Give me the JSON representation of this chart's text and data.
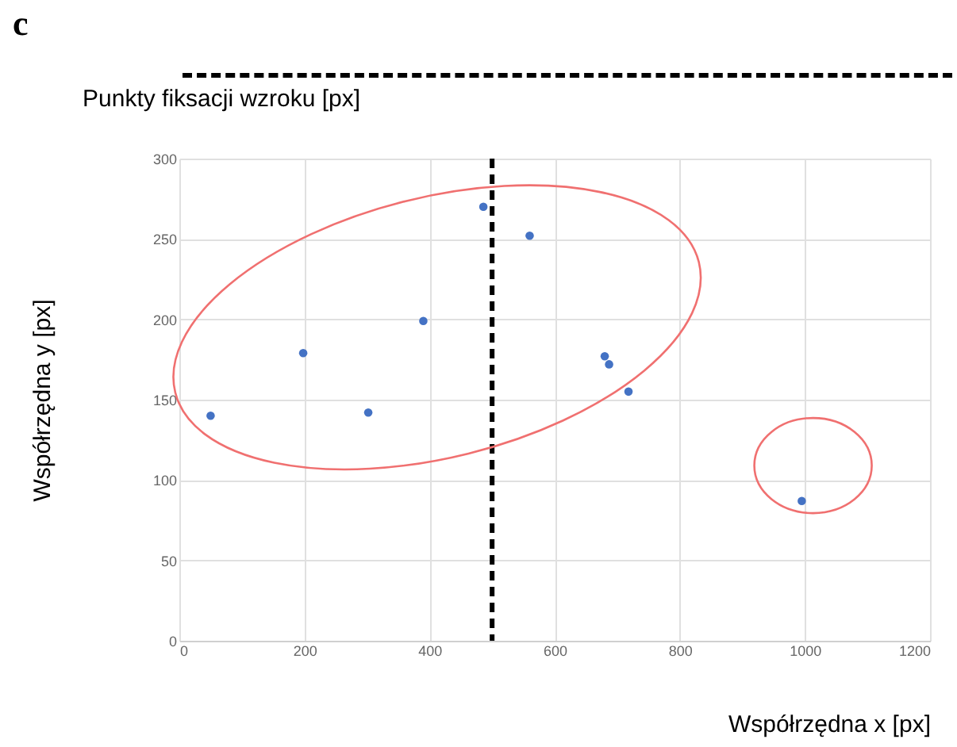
{
  "chart_data": {
    "type": "scatter",
    "title": "Punkty fiksacji wzroku [px]",
    "xlabel": "Współrzędna x [px]",
    "ylabel": "Współrzędna y [px]",
    "annotations": [
      "c"
    ],
    "x": [
      50,
      198,
      302,
      390,
      486,
      560,
      680,
      687,
      718,
      995
    ],
    "values": [
      140,
      179,
      142,
      199,
      270,
      252,
      177,
      172,
      155,
      87
    ],
    "color": "#4472c4",
    "marker": "circle",
    "xlim": [
      0,
      1200
    ],
    "xticks": [
      0,
      200,
      400,
      600,
      800,
      1000,
      1200
    ],
    "ylim": [
      0,
      300
    ],
    "yticks": [
      0,
      50,
      100,
      150,
      200,
      250,
      300
    ],
    "grid": true,
    "ref_lines": [
      {
        "axis": "x",
        "value": 500,
        "color": "#000000",
        "line_style": "dashed"
      }
    ]
  }
}
